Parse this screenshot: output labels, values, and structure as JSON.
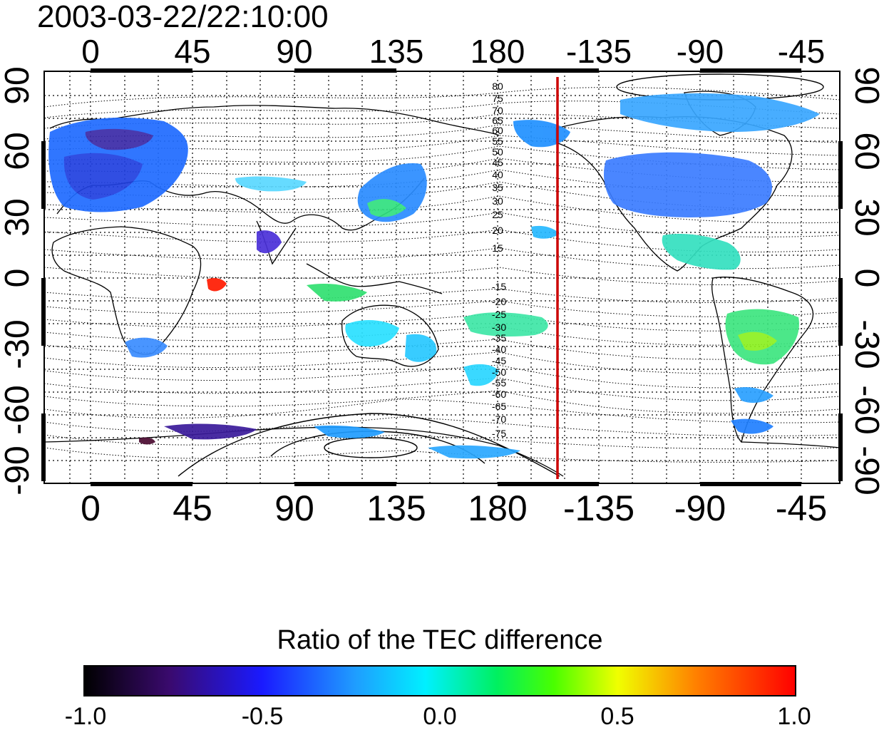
{
  "title": "2003-03-22/22:10:00",
  "map": {
    "top_lon_ticks": [
      "0",
      "45",
      "90",
      "135",
      "180",
      "-135",
      "-90",
      "-45"
    ],
    "bottom_lon_ticks": [
      "0",
      "45",
      "90",
      "135",
      "180",
      "-135",
      "-90",
      "-45"
    ],
    "left_lat_ticks": [
      "90",
      "60",
      "30",
      "0",
      "-30",
      "-60",
      "-90"
    ],
    "right_lat_ticks": [
      "90",
      "60",
      "30",
      "0",
      "-30",
      "-60",
      "-90"
    ],
    "contour_labels_north": [
      "80",
      "75",
      "70",
      "65",
      "60",
      "55",
      "50",
      "45",
      "40",
      "35",
      "30",
      "25",
      "20",
      "15"
    ],
    "contour_labels_south": [
      "-15",
      "-20",
      "-25",
      "-30",
      "-35",
      "-40",
      "-45",
      "-50",
      "-55",
      "-60",
      "-65",
      "-70",
      "-75"
    ],
    "terminator_line_lon": -152.5,
    "colors": {
      "terminator": "#cc0000",
      "coastline": "#000000",
      "grid": "#000000"
    }
  },
  "colorbar": {
    "title": "Ratio of the TEC difference",
    "ticks": [
      "-1.0",
      "-0.5",
      "0.0",
      "0.5",
      "1.0"
    ],
    "range": [
      -1.0,
      1.0
    ],
    "colormap": [
      "#000000",
      "#3a0a6e",
      "#1a1aff",
      "#1f9cff",
      "#00f0ff",
      "#00f060",
      "#49ff00",
      "#f0ff00",
      "#ff8000",
      "#ff0000"
    ]
  }
}
